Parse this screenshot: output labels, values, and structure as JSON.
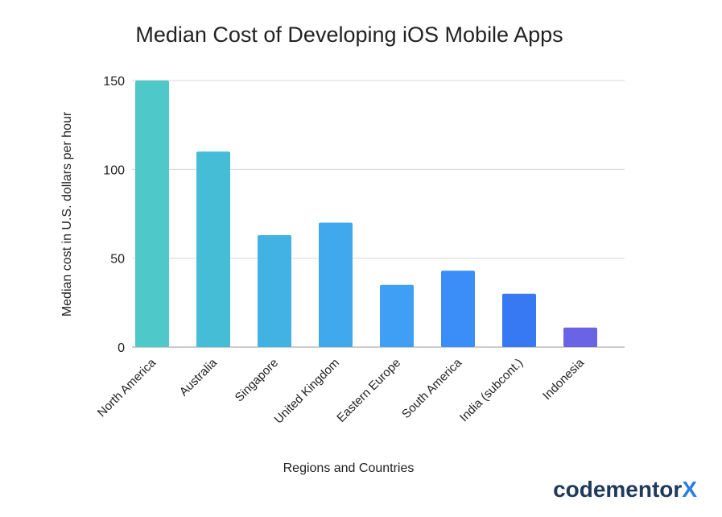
{
  "chart_data": {
    "type": "bar",
    "title": "Median Cost of Developing iOS Mobile Apps",
    "xlabel": "Regions and Countries",
    "ylabel": "Median cost in U.S. dollars per hour",
    "categories": [
      "North America",
      "Australia",
      "Singapore",
      "United Kingdom",
      "Eastern Europe",
      "South America",
      "India (subcont.)",
      "Indonesia"
    ],
    "values": [
      150,
      110,
      63,
      70,
      35,
      43,
      30,
      11
    ],
    "colors": [
      "#4ec8c9",
      "#46bdd7",
      "#42b2e2",
      "#40a9ee",
      "#3f9ff5",
      "#3b8ef8",
      "#3679f2",
      "#6a63e6"
    ],
    "ylim": [
      0,
      150
    ],
    "yticks": [
      "150",
      "100",
      "50",
      "0"
    ],
    "grid": true,
    "legend": "none"
  },
  "brand": {
    "text": "codementor",
    "accent": "X"
  }
}
